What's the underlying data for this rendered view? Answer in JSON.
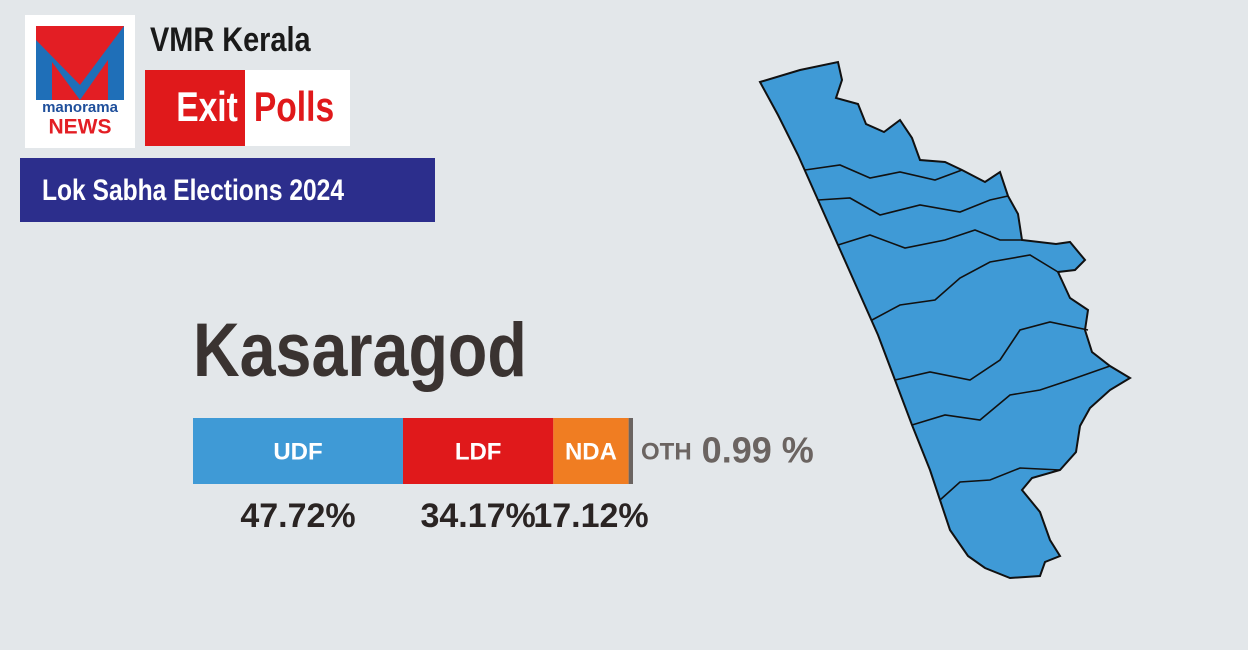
{
  "header": {
    "logo_top": "manorama",
    "logo_bottom": "NEWS",
    "brand": "VMR Kerala",
    "exit": "Exit",
    "polls": "Polls",
    "banner": "Lok Sabha Elections 2024"
  },
  "chart_data": {
    "type": "stacked-bar",
    "title": "Kasaragod",
    "series": [
      {
        "name": "UDF",
        "color": "#3f9ad6",
        "values": [
          47.72
        ],
        "value_labels": [
          "47.72%"
        ]
      },
      {
        "name": "LDF",
        "color": "#e0191b",
        "values": [
          34.17
        ],
        "value_labels": [
          "34.17%"
        ]
      },
      {
        "name": "NDA",
        "color": "#f07d22",
        "values": [
          17.12
        ],
        "value_labels": [
          "17.12%"
        ]
      },
      {
        "name": "OTH",
        "color": "#6b6461",
        "values": [
          0.99
        ],
        "value_labels": [
          "0.99 %"
        ]
      }
    ]
  }
}
